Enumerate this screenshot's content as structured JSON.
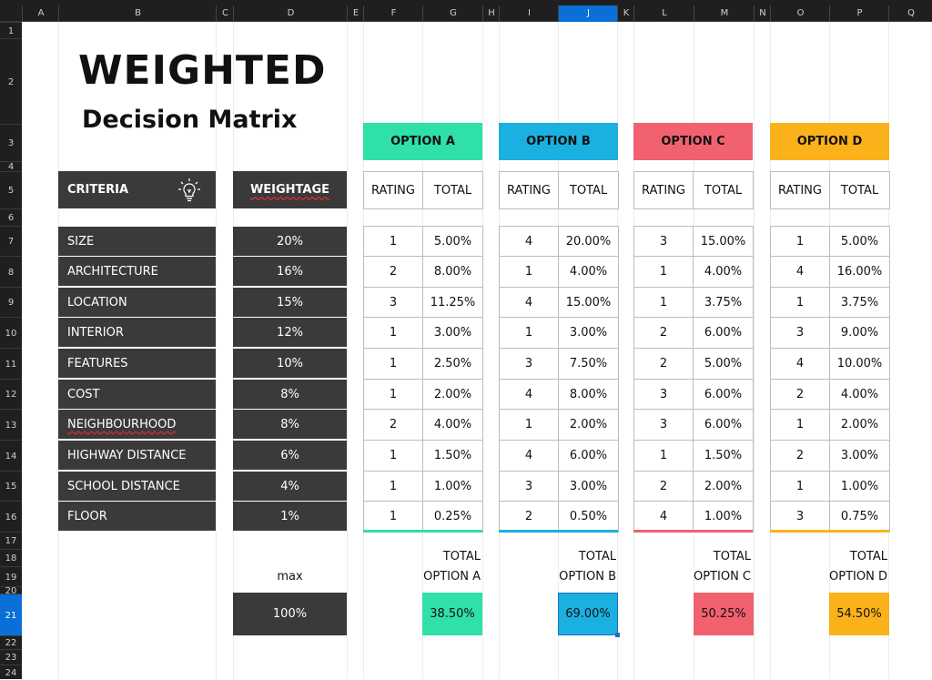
{
  "sheet": {
    "columns": [
      "A",
      "B",
      "C",
      "D",
      "E",
      "F",
      "G",
      "H",
      "I",
      "J",
      "K",
      "L",
      "M",
      "N",
      "O",
      "P",
      "Q"
    ],
    "rows": [
      "1",
      "2",
      "3",
      "4",
      "5",
      "6",
      "7",
      "8",
      "9",
      "10",
      "11",
      "12",
      "13",
      "14",
      "15",
      "16",
      "17",
      "18",
      "19",
      "20",
      "21",
      "22",
      "23",
      "24"
    ],
    "selected_column": "J",
    "selected_row": "21"
  },
  "title": {
    "line1": "WEIGHTED",
    "line2": "Decision Matrix"
  },
  "headers": {
    "criteria": "CRITERIA",
    "weightage": "WEIGHTAGE",
    "rating": "RATING",
    "total": "TOTAL"
  },
  "options": [
    {
      "label": "OPTION A",
      "color": "#2fe0a8"
    },
    {
      "label": "OPTION B",
      "color": "#1ab0e0"
    },
    {
      "label": "OPTION C",
      "color": "#f2616f"
    },
    {
      "label": "OPTION D",
      "color": "#fbb21a"
    }
  ],
  "criteria": [
    {
      "name": "SIZE",
      "weight": "20%"
    },
    {
      "name": "ARCHITECTURE",
      "weight": "16%"
    },
    {
      "name": "LOCATION",
      "weight": "15%"
    },
    {
      "name": "INTERIOR",
      "weight": "12%"
    },
    {
      "name": "FEATURES",
      "weight": "10%"
    },
    {
      "name": "COST",
      "weight": "8%"
    },
    {
      "name": "NEIGHBOURHOOD",
      "weight": "8%"
    },
    {
      "name": "HIGHWAY DISTANCE",
      "weight": "6%"
    },
    {
      "name": "SCHOOL DISTANCE",
      "weight": "4%"
    },
    {
      "name": "FLOOR",
      "weight": "1%"
    }
  ],
  "matrix": [
    [
      [
        "1",
        "5.00%"
      ],
      [
        "4",
        "20.00%"
      ],
      [
        "3",
        "15.00%"
      ],
      [
        "1",
        "5.00%"
      ]
    ],
    [
      [
        "2",
        "8.00%"
      ],
      [
        "1",
        "4.00%"
      ],
      [
        "1",
        "4.00%"
      ],
      [
        "4",
        "16.00%"
      ]
    ],
    [
      [
        "3",
        "11.25%"
      ],
      [
        "4",
        "15.00%"
      ],
      [
        "1",
        "3.75%"
      ],
      [
        "1",
        "3.75%"
      ]
    ],
    [
      [
        "1",
        "3.00%"
      ],
      [
        "1",
        "3.00%"
      ],
      [
        "2",
        "6.00%"
      ],
      [
        "3",
        "9.00%"
      ]
    ],
    [
      [
        "1",
        "2.50%"
      ],
      [
        "3",
        "7.50%"
      ],
      [
        "2",
        "5.00%"
      ],
      [
        "4",
        "10.00%"
      ]
    ],
    [
      [
        "1",
        "2.00%"
      ],
      [
        "4",
        "8.00%"
      ],
      [
        "3",
        "6.00%"
      ],
      [
        "2",
        "4.00%"
      ]
    ],
    [
      [
        "2",
        "4.00%"
      ],
      [
        "1",
        "2.00%"
      ],
      [
        "3",
        "6.00%"
      ],
      [
        "1",
        "2.00%"
      ]
    ],
    [
      [
        "1",
        "1.50%"
      ],
      [
        "4",
        "6.00%"
      ],
      [
        "1",
        "1.50%"
      ],
      [
        "2",
        "3.00%"
      ]
    ],
    [
      [
        "1",
        "1.00%"
      ],
      [
        "3",
        "3.00%"
      ],
      [
        "2",
        "2.00%"
      ],
      [
        "1",
        "1.00%"
      ]
    ],
    [
      [
        "1",
        "0.25%"
      ],
      [
        "2",
        "0.50%"
      ],
      [
        "4",
        "1.00%"
      ],
      [
        "3",
        "0.75%"
      ]
    ]
  ],
  "summary": {
    "max_label": "max",
    "max_value": "100%",
    "totals": [
      {
        "line1": "TOTAL",
        "line2": "OPTION A",
        "value": "38.50%"
      },
      {
        "line1": "TOTAL",
        "line2": "OPTION B",
        "value": "69.00%"
      },
      {
        "line1": "TOTAL",
        "line2": "OPTION C",
        "value": "50.25%"
      },
      {
        "line1": "TOTAL",
        "line2": "OPTION D",
        "value": "54.50%"
      }
    ]
  },
  "icons": {
    "criteria": "lightbulb-icon"
  }
}
